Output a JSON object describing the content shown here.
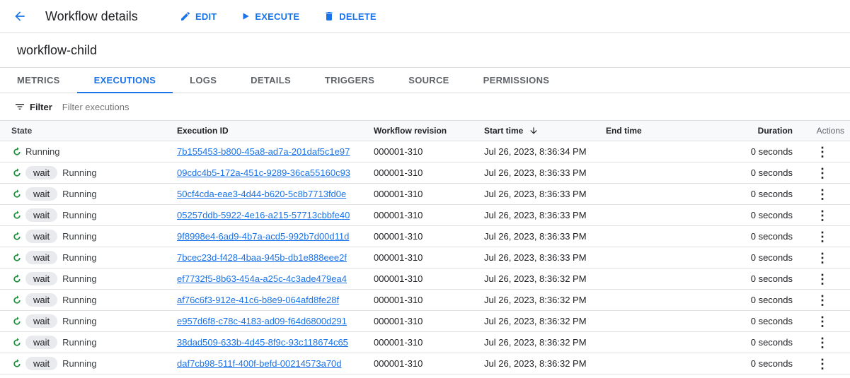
{
  "header": {
    "title": "Workflow details",
    "edit": "EDIT",
    "execute": "EXECUTE",
    "delete": "DELETE"
  },
  "workflow_name": "workflow-child",
  "tabs": [
    "METRICS",
    "EXECUTIONS",
    "LOGS",
    "DETAILS",
    "TRIGGERS",
    "SOURCE",
    "PERMISSIONS"
  ],
  "active_tab": "EXECUTIONS",
  "filter": {
    "label": "Filter",
    "placeholder": "Filter executions"
  },
  "columns": {
    "state": "State",
    "id": "Execution ID",
    "revision": "Workflow revision",
    "start": "Start time",
    "end": "End time",
    "duration": "Duration",
    "actions": "Actions"
  },
  "rows": [
    {
      "chip": "",
      "state": "Running",
      "id": "7b155453-b800-45a8-ad7a-201daf5c1e97",
      "revision": "000001-310",
      "start": "Jul 26, 2023, 8:36:34 PM",
      "end": "",
      "duration": "0 seconds"
    },
    {
      "chip": "wait",
      "state": "Running",
      "id": "09cdc4b5-172a-451c-9289-36ca55160c93",
      "revision": "000001-310",
      "start": "Jul 26, 2023, 8:36:33 PM",
      "end": "",
      "duration": "0 seconds"
    },
    {
      "chip": "wait",
      "state": "Running",
      "id": "50cf4cda-eae3-4d44-b620-5c8b7713fd0e",
      "revision": "000001-310",
      "start": "Jul 26, 2023, 8:36:33 PM",
      "end": "",
      "duration": "0 seconds"
    },
    {
      "chip": "wait",
      "state": "Running",
      "id": "05257ddb-5922-4e16-a215-57713cbbfe40",
      "revision": "000001-310",
      "start": "Jul 26, 2023, 8:36:33 PM",
      "end": "",
      "duration": "0 seconds"
    },
    {
      "chip": "wait",
      "state": "Running",
      "id": "9f8998e4-6ad9-4b7a-acd5-992b7d00d11d",
      "revision": "000001-310",
      "start": "Jul 26, 2023, 8:36:33 PM",
      "end": "",
      "duration": "0 seconds"
    },
    {
      "chip": "wait",
      "state": "Running",
      "id": "7bcec23d-f428-4baa-945b-db1e888eee2f",
      "revision": "000001-310",
      "start": "Jul 26, 2023, 8:36:33 PM",
      "end": "",
      "duration": "0 seconds"
    },
    {
      "chip": "wait",
      "state": "Running",
      "id": "ef7732f5-8b63-454a-a25c-4c3ade479ea4",
      "revision": "000001-310",
      "start": "Jul 26, 2023, 8:36:32 PM",
      "end": "",
      "duration": "0 seconds"
    },
    {
      "chip": "wait",
      "state": "Running",
      "id": "af76c6f3-912e-41c6-b8e9-064afd8fe28f",
      "revision": "000001-310",
      "start": "Jul 26, 2023, 8:36:32 PM",
      "end": "",
      "duration": "0 seconds"
    },
    {
      "chip": "wait",
      "state": "Running",
      "id": "e957d6f8-c78c-4183-ad09-f64d6800d291",
      "revision": "000001-310",
      "start": "Jul 26, 2023, 8:36:32 PM",
      "end": "",
      "duration": "0 seconds"
    },
    {
      "chip": "wait",
      "state": "Running",
      "id": "38dad509-633b-4d45-8f9c-93c118674c65",
      "revision": "000001-310",
      "start": "Jul 26, 2023, 8:36:32 PM",
      "end": "",
      "duration": "0 seconds"
    },
    {
      "chip": "wait",
      "state": "Running",
      "id": "daf7cb98-511f-400f-befd-00214573a70d",
      "revision": "000001-310",
      "start": "Jul 26, 2023, 8:36:32 PM",
      "end": "",
      "duration": "0 seconds"
    }
  ],
  "colors": {
    "accent": "#1a73e8",
    "running": "#1e8e3e"
  }
}
